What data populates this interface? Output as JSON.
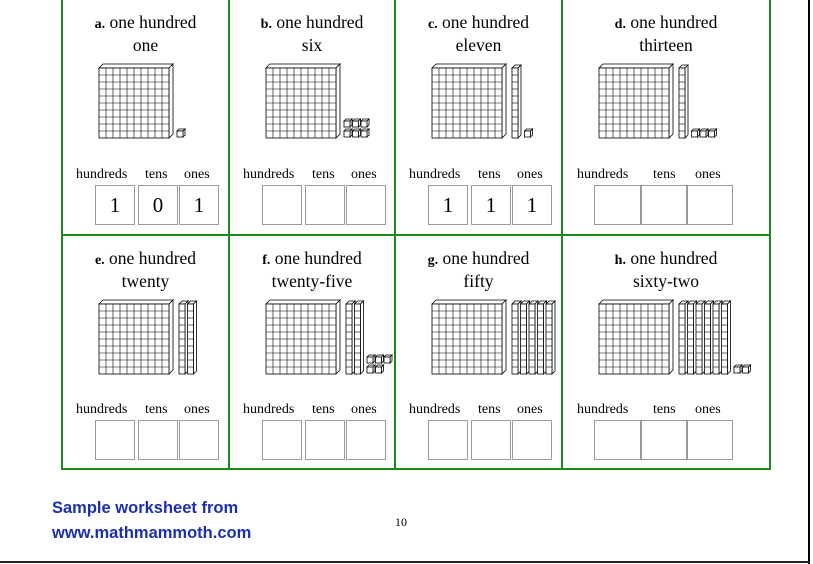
{
  "problems": [
    {
      "letter": "a.",
      "words": [
        "one hundred",
        "one"
      ],
      "hundreds": 1,
      "tens": 0,
      "ones": 1,
      "answers": [
        "1",
        "0",
        "1"
      ]
    },
    {
      "letter": "b.",
      "words": [
        "one hundred",
        "six"
      ],
      "hundreds": 1,
      "tens": 0,
      "ones": 6,
      "answers": [
        "",
        "",
        ""
      ]
    },
    {
      "letter": "c.",
      "words": [
        "one hundred",
        "eleven"
      ],
      "hundreds": 1,
      "tens": 1,
      "ones": 1,
      "answers": [
        "1",
        "1",
        "1"
      ]
    },
    {
      "letter": "d.",
      "words": [
        "one hundred",
        "thirteen"
      ],
      "hundreds": 1,
      "tens": 1,
      "ones": 3,
      "answers": [
        "",
        "",
        ""
      ]
    },
    {
      "letter": "e.",
      "words": [
        "one hundred",
        "twenty"
      ],
      "hundreds": 1,
      "tens": 2,
      "ones": 0,
      "answers": [
        "",
        "",
        ""
      ]
    },
    {
      "letter": "f.",
      "words": [
        "one hundred",
        "twenty-five"
      ],
      "hundreds": 1,
      "tens": 2,
      "ones": 5,
      "answers": [
        "",
        "",
        ""
      ]
    },
    {
      "letter": "g.",
      "words": [
        "one hundred",
        "fifty"
      ],
      "hundreds": 1,
      "tens": 5,
      "ones": 0,
      "answers": [
        "",
        "",
        ""
      ]
    },
    {
      "letter": "h.",
      "words": [
        "one hundred",
        "sixty-two"
      ],
      "hundreds": 1,
      "tens": 6,
      "ones": 2,
      "answers": [
        "",
        "",
        ""
      ]
    }
  ],
  "labels": {
    "hundreds": "hundreds",
    "tens": "tens",
    "ones": "ones"
  },
  "footer": {
    "line1": "Sample worksheet from",
    "line2": "www.mathmammoth.com",
    "page_number": "10"
  },
  "colors": {
    "border": "#1a8a1a",
    "link": "#1c2fb0"
  }
}
